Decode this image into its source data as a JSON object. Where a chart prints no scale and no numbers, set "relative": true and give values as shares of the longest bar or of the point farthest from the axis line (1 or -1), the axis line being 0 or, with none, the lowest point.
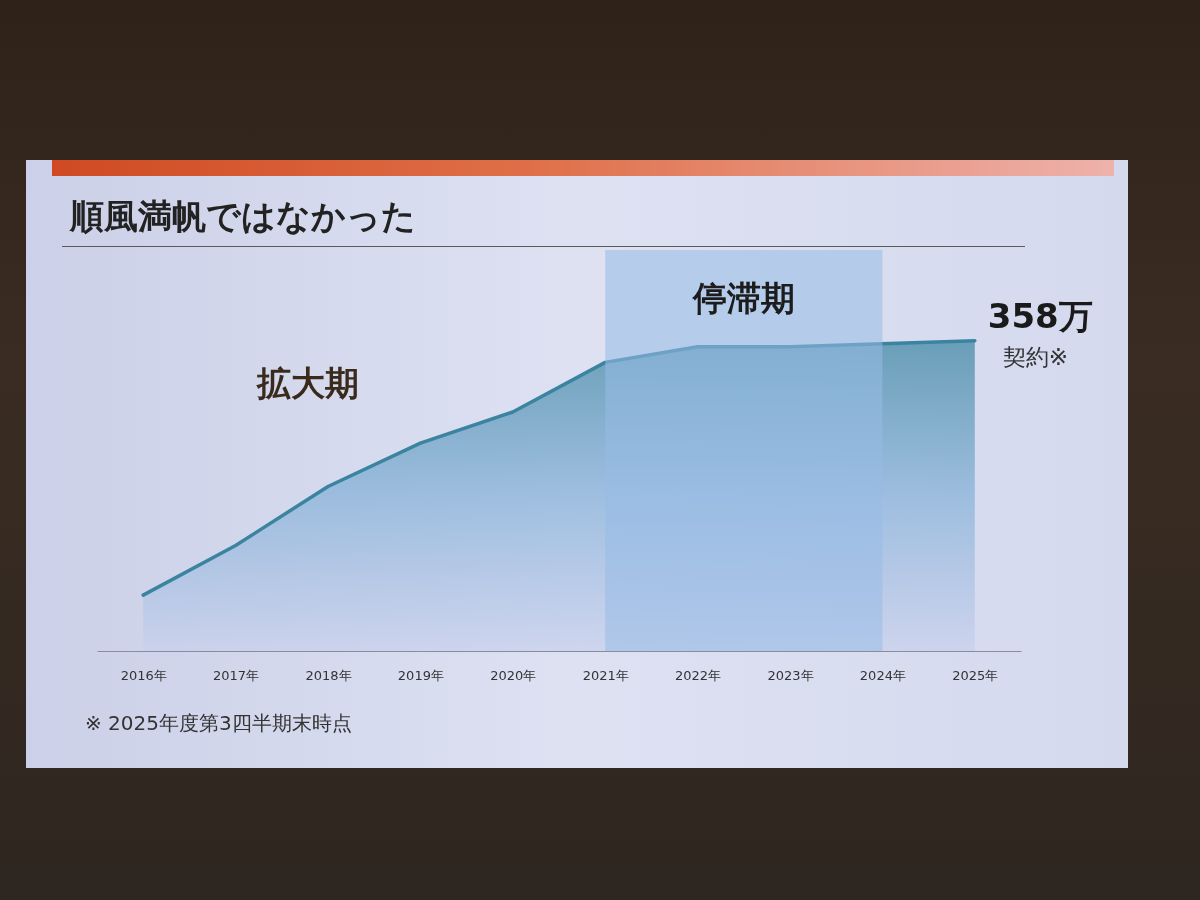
{
  "chart_data": {
    "type": "area",
    "title": "順風満帆ではなかった",
    "categories": [
      "2016年",
      "2017年",
      "2018年",
      "2019年",
      "2020年",
      "2021年",
      "2022年",
      "2023年",
      "2024年",
      "2025年"
    ],
    "relative": true,
    "series": [
      {
        "name": "契約※",
        "color": "#3a84a0",
        "values": [
          0.18,
          0.34,
          0.53,
          0.67,
          0.77,
          0.93,
          0.98,
          0.98,
          0.99,
          1
        ]
      }
    ],
    "bands": [
      {
        "axis": "x",
        "from": "2021年",
        "to": "2024年",
        "label": "停滞期",
        "color": "#98bce6"
      }
    ],
    "annotations": [
      {
        "text": "358万",
        "x": "2025年",
        "y": 1
      },
      "拡大期",
      "※ 2025年度第3四半期末時点"
    ],
    "tick_labels": "x"
  }
}
